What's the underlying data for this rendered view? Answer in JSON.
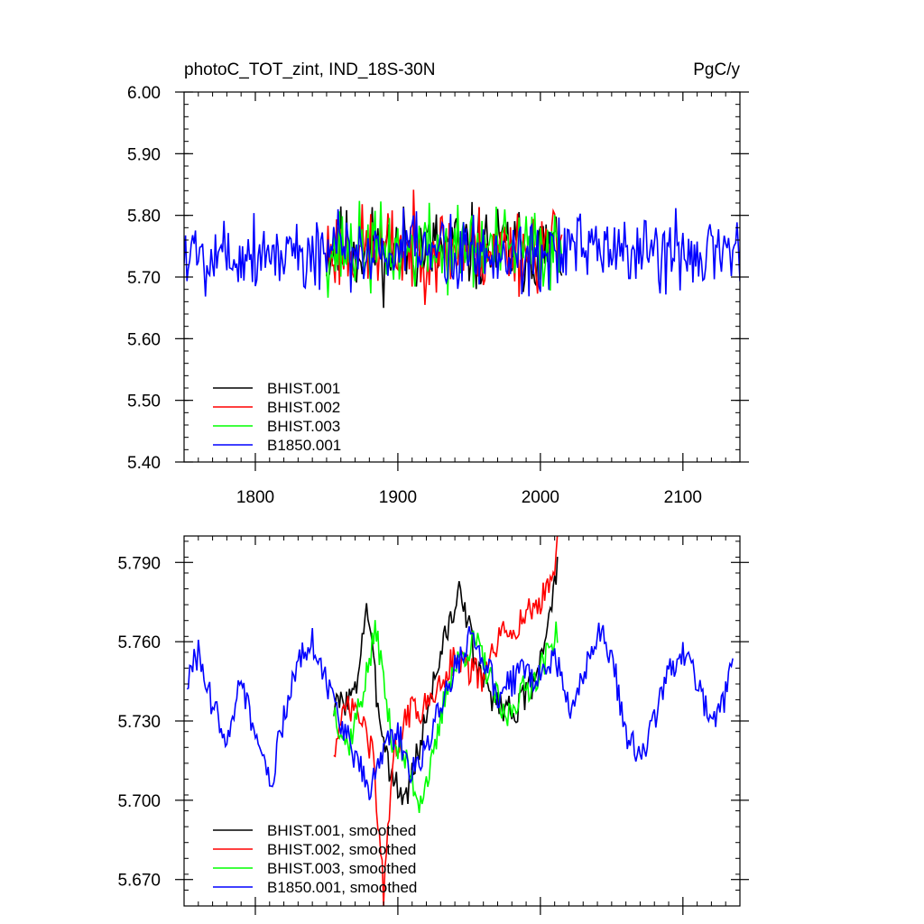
{
  "chart_data": [
    {
      "type": "line",
      "title": "photoC_TOT_zint, IND_18S-30N",
      "units": "PgC/y",
      "xlim": [
        1750,
        2140
      ],
      "ylim": [
        5.4,
        6.0
      ],
      "xticks": [
        1800,
        1900,
        2000,
        2100
      ],
      "xtick_labels": [
        "1800",
        "1900",
        "2000",
        "2100"
      ],
      "yticks": [
        5.4,
        5.5,
        5.6,
        5.7,
        5.8,
        5.9,
        6.0
      ],
      "ytick_labels": [
        "5.40",
        "5.50",
        "5.60",
        "5.70",
        "5.80",
        "5.90",
        "6.00"
      ],
      "legend": "bottom-left",
      "grid": false,
      "series": [
        {
          "name": "BHIST.001",
          "color": "#000000",
          "start": 1850,
          "end": 2015,
          "mean": 5.745,
          "amp": 0.065,
          "seed": 11
        },
        {
          "name": "BHIST.002",
          "color": "#ff0000",
          "start": 1850,
          "end": 2015,
          "mean": 5.745,
          "amp": 0.065,
          "seed": 23
        },
        {
          "name": "BHIST.003",
          "color": "#00ff00",
          "start": 1850,
          "end": 2015,
          "mean": 5.745,
          "amp": 0.065,
          "seed": 37
        },
        {
          "name": "B1850.001",
          "color": "#0000ff",
          "start": 1750,
          "end": 2140,
          "mean": 5.74,
          "amp": 0.06,
          "seed": 5
        }
      ]
    },
    {
      "type": "line",
      "xlim": [
        1750,
        2140
      ],
      "ylim": [
        5.66,
        5.8
      ],
      "xticks": [
        1800,
        1900,
        2000,
        2100
      ],
      "yticks": [
        5.67,
        5.7,
        5.73,
        5.76,
        5.79
      ],
      "ytick_labels": [
        "5.670",
        "5.700",
        "5.730",
        "5.760",
        "5.790"
      ],
      "legend": "bottom-left",
      "grid": false,
      "series": [
        {
          "name": "BHIST.001, smoothed",
          "color": "#000000",
          "knots": [
            [
              1855,
              5.735
            ],
            [
              1870,
              5.74
            ],
            [
              1878,
              5.775
            ],
            [
              1885,
              5.74
            ],
            [
              1895,
              5.71
            ],
            [
              1905,
              5.7
            ],
            [
              1915,
              5.72
            ],
            [
              1925,
              5.745
            ],
            [
              1935,
              5.765
            ],
            [
              1945,
              5.78
            ],
            [
              1955,
              5.75
            ],
            [
              1965,
              5.74
            ],
            [
              1975,
              5.735
            ],
            [
              1985,
              5.735
            ],
            [
              1995,
              5.745
            ],
            [
              2005,
              5.765
            ],
            [
              2012,
              5.787
            ]
          ]
        },
        {
          "name": "BHIST.002, smoothed",
          "color": "#ff0000",
          "knots": [
            [
              1855,
              5.72
            ],
            [
              1865,
              5.735
            ],
            [
              1875,
              5.73
            ],
            [
              1883,
              5.715
            ],
            [
              1890,
              5.665
            ],
            [
              1898,
              5.72
            ],
            [
              1910,
              5.735
            ],
            [
              1920,
              5.735
            ],
            [
              1930,
              5.745
            ],
            [
              1940,
              5.755
            ],
            [
              1950,
              5.75
            ],
            [
              1960,
              5.745
            ],
            [
              1970,
              5.76
            ],
            [
              1980,
              5.765
            ],
            [
              1990,
              5.77
            ],
            [
              2000,
              5.775
            ],
            [
              2008,
              5.785
            ],
            [
              2012,
              5.795
            ]
          ]
        },
        {
          "name": "BHIST.003, smoothed",
          "color": "#00ff00",
          "knots": [
            [
              1855,
              5.735
            ],
            [
              1865,
              5.72
            ],
            [
              1875,
              5.74
            ],
            [
              1885,
              5.765
            ],
            [
              1895,
              5.725
            ],
            [
              1905,
              5.715
            ],
            [
              1915,
              5.7
            ],
            [
              1925,
              5.715
            ],
            [
              1935,
              5.745
            ],
            [
              1945,
              5.755
            ],
            [
              1955,
              5.76
            ],
            [
              1965,
              5.745
            ],
            [
              1975,
              5.73
            ],
            [
              1985,
              5.74
            ],
            [
              1995,
              5.745
            ],
            [
              2005,
              5.755
            ],
            [
              2012,
              5.765
            ]
          ]
        },
        {
          "name": "B1850.001, smoothed",
          "color": "#0000ff",
          "knots": [
            [
              1752,
              5.745
            ],
            [
              1760,
              5.755
            ],
            [
              1770,
              5.735
            ],
            [
              1780,
              5.725
            ],
            [
              1790,
              5.745
            ],
            [
              1800,
              5.725
            ],
            [
              1810,
              5.705
            ],
            [
              1820,
              5.73
            ],
            [
              1830,
              5.755
            ],
            [
              1840,
              5.76
            ],
            [
              1850,
              5.745
            ],
            [
              1860,
              5.73
            ],
            [
              1870,
              5.715
            ],
            [
              1880,
              5.705
            ],
            [
              1890,
              5.72
            ],
            [
              1900,
              5.725
            ],
            [
              1910,
              5.71
            ],
            [
              1920,
              5.72
            ],
            [
              1930,
              5.735
            ],
            [
              1940,
              5.75
            ],
            [
              1950,
              5.76
            ],
            [
              1960,
              5.755
            ],
            [
              1970,
              5.74
            ],
            [
              1980,
              5.745
            ],
            [
              1990,
              5.75
            ],
            [
              2000,
              5.745
            ],
            [
              2010,
              5.755
            ],
            [
              2020,
              5.735
            ],
            [
              2030,
              5.745
            ],
            [
              2040,
              5.765
            ],
            [
              2050,
              5.755
            ],
            [
              2060,
              5.725
            ],
            [
              2070,
              5.715
            ],
            [
              2080,
              5.73
            ],
            [
              2090,
              5.75
            ],
            [
              2100,
              5.755
            ],
            [
              2110,
              5.745
            ],
            [
              2120,
              5.73
            ],
            [
              2130,
              5.74
            ],
            [
              2135,
              5.75
            ]
          ]
        }
      ]
    }
  ]
}
